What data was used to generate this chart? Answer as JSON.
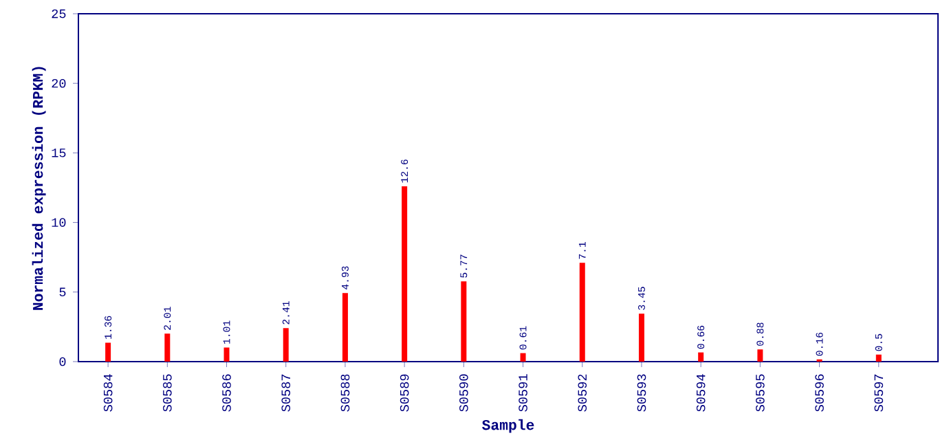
{
  "chart_data": {
    "type": "bar",
    "xlabel": "Sample",
    "ylabel": "Normalized expression (RPKM)",
    "categories": [
      "S0584",
      "S0585",
      "S0586",
      "S0587",
      "S0588",
      "S0589",
      "S0590",
      "S0591",
      "S0592",
      "S0593",
      "S0594",
      "S0595",
      "S0596",
      "S0597"
    ],
    "values": [
      1.36,
      2.01,
      1.01,
      2.41,
      4.93,
      12.6,
      5.77,
      0.61,
      7.1,
      3.45,
      0.66,
      0.88,
      0.16,
      0.5
    ],
    "color": "#ff0000",
    "ylim": [
      0,
      25
    ],
    "yticks": [
      0,
      5,
      10,
      15,
      20,
      25
    ],
    "data_labels": true
  }
}
